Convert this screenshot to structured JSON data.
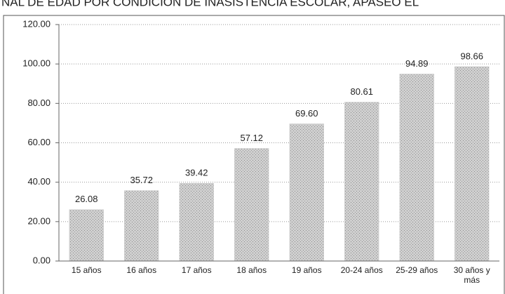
{
  "chart_data": {
    "type": "bar",
    "title": "NAL DE EDAD POR CONDICIÓN DE INASISTENCIA ESCOLAR, APASEO EL",
    "categories": [
      "15 años",
      "16 años",
      "17 años",
      "18 años",
      "19 años",
      "20-24 años",
      "25-29 años",
      "30 años y más"
    ],
    "values": [
      26.08,
      35.72,
      39.42,
      57.12,
      69.6,
      80.61,
      94.89,
      98.66
    ],
    "value_labels": [
      "26.08",
      "35.72",
      "39.42",
      "57.12",
      "69.60",
      "80.61",
      "94.89",
      "98.66"
    ],
    "color": "#c4c4c4",
    "ylim": [
      0,
      120
    ],
    "yticks": [
      {
        "value": 0,
        "label": "0.00"
      },
      {
        "value": 20,
        "label": "20.00"
      },
      {
        "value": 40,
        "label": "40.00"
      },
      {
        "value": 60,
        "label": "60.00"
      },
      {
        "value": 80,
        "label": "80.00"
      },
      {
        "value": 100,
        "label": "100.00"
      },
      {
        "value": 120,
        "label": "120.00"
      }
    ],
    "grid": true
  }
}
